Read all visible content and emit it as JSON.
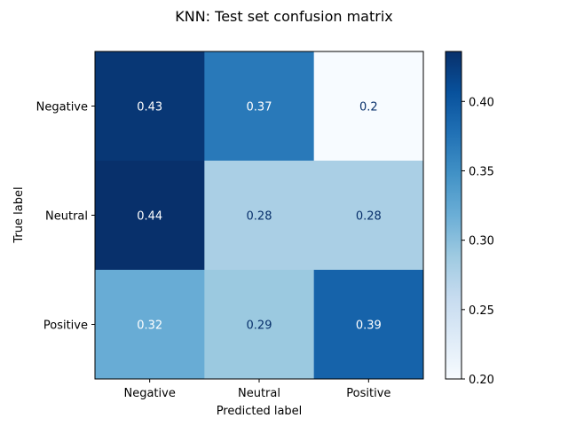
{
  "chart_data": {
    "type": "heatmap",
    "title": "KNN: Test set confusion matrix",
    "xlabel": "Predicted label",
    "ylabel": "True label",
    "x_categories": [
      "Negative",
      "Neutral",
      "Positive"
    ],
    "y_categories": [
      "Negative",
      "Neutral",
      "Positive"
    ],
    "values": [
      [
        0.43,
        0.37,
        0.2
      ],
      [
        0.44,
        0.28,
        0.28
      ],
      [
        0.32,
        0.29,
        0.39
      ]
    ],
    "colormap": "Blues",
    "colorbar": {
      "vmin": 0.2,
      "vmax": 0.436,
      "ticks": [
        0.2,
        0.25,
        0.3,
        0.35,
        0.4
      ],
      "tick_labels": [
        "0.20",
        "0.25",
        "0.30",
        "0.35",
        "0.40"
      ]
    },
    "text_colors": {
      "light": "#ffffff",
      "dark": "#08306b"
    }
  }
}
